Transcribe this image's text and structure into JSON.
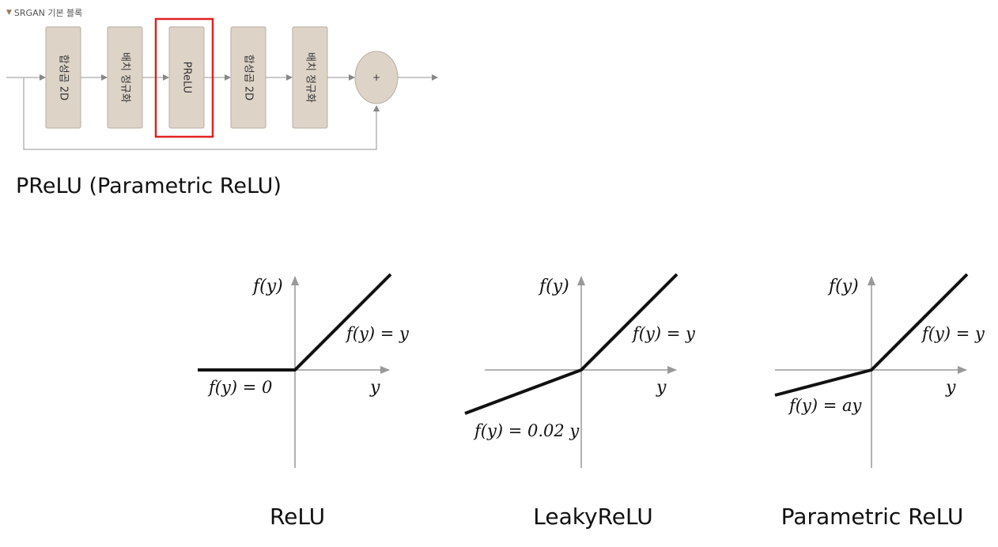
{
  "header": {
    "toggle_icon": "triangle-down-icon",
    "title": "SRGAN 기본 블록"
  },
  "block_diagram": {
    "blocks": [
      {
        "label": "합성곱 2D",
        "highlighted": false
      },
      {
        "label": "배치 정규화",
        "highlighted": false
      },
      {
        "label": "PReLU",
        "highlighted": true
      },
      {
        "label": "합성곱 2D",
        "highlighted": false
      },
      {
        "label": "배치 정규화",
        "highlighted": false
      }
    ],
    "sum_symbol": "+",
    "block_color": "#ddd3c7",
    "highlight_color": "#e02020"
  },
  "heading": "PReLU (Parametric ReLU)",
  "plots": [
    {
      "name": "relu",
      "caption": "ReLU",
      "y_axis_label": "f(y)",
      "x_axis_label": "y",
      "positive_label": "f(y) = y",
      "negative_label": "f(y) = 0"
    },
    {
      "name": "leaky-relu",
      "caption": "LeakyReLU",
      "y_axis_label": "f(y)",
      "x_axis_label": "y",
      "positive_label": "f(y) = y",
      "negative_label": "f(y) = 0.02 y"
    },
    {
      "name": "parametric-relu",
      "caption": "Parametric ReLU",
      "y_axis_label": "f(y)",
      "x_axis_label": "y",
      "positive_label": "f(y) = y",
      "negative_label": "f(y) = ay"
    }
  ]
}
